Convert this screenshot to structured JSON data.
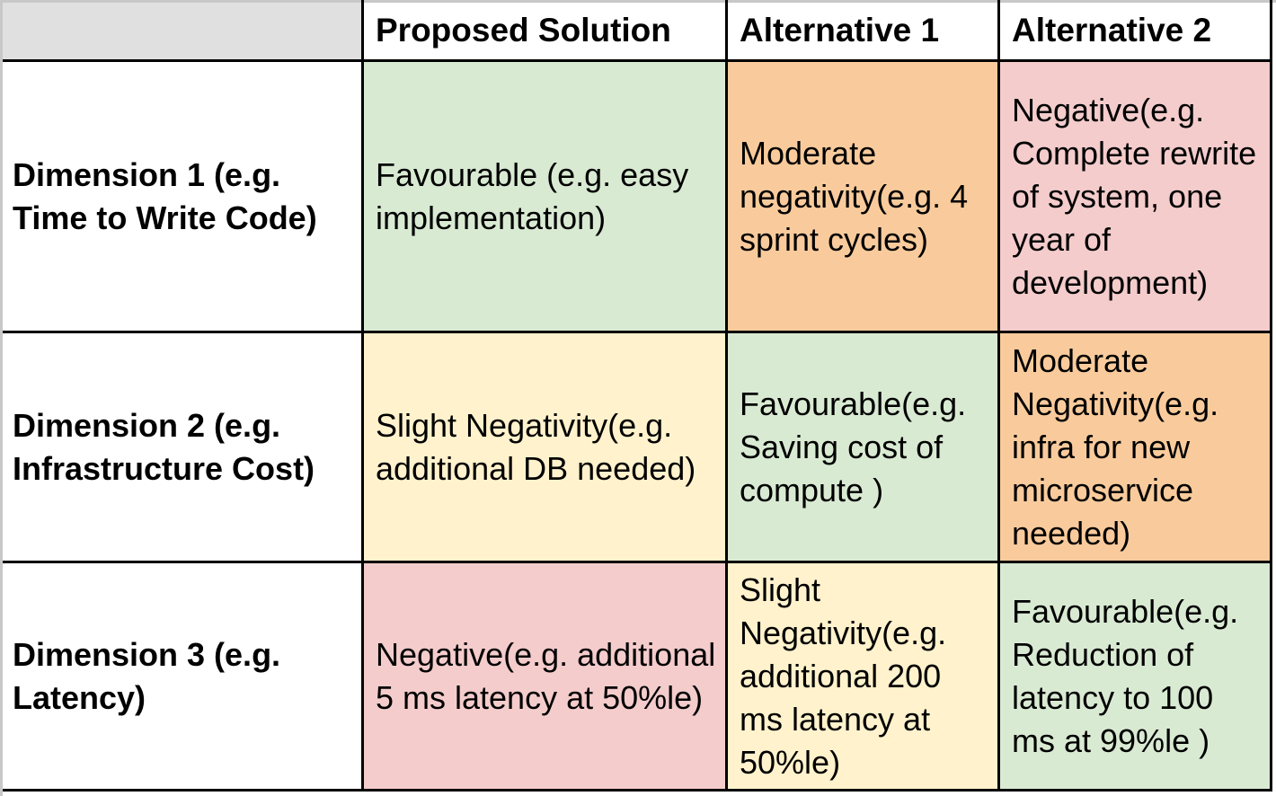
{
  "table": {
    "colors": {
      "header_bg": "#e0e0e0",
      "favourable": "#d9ead3",
      "slight": "#fff2cc",
      "moderate": "#f9cb9c",
      "negative": "#f4cccc",
      "white": "#ffffff"
    },
    "columns": [
      "",
      "Proposed Solution",
      "Alternative 1",
      "Alternative 2"
    ],
    "rows": [
      {
        "label": "Dimension 1 (e.g. Time to Write Code)",
        "cells": [
          {
            "text": "Favourable (e.g. easy implementation)",
            "rating": "favourable"
          },
          {
            "text": "Moderate negativity(e.g. 4 sprint cycles)",
            "rating": "moderate"
          },
          {
            "text": "Negative(e.g. Complete rewrite of system, one year of development)",
            "rating": "negative"
          }
        ]
      },
      {
        "label": "Dimension 2 (e.g. Infrastructure Cost)",
        "cells": [
          {
            "text": "Slight Negativity(e.g. additional DB needed)",
            "rating": "slight"
          },
          {
            "text": "Favourable(e.g. Saving cost of compute )",
            "rating": "favourable"
          },
          {
            "text": "Moderate Negativity(e.g. infra for new microservice needed)",
            "rating": "moderate"
          }
        ]
      },
      {
        "label": "Dimension 3 (e.g. Latency)",
        "cells": [
          {
            "text": "Negative(e.g. additional 5 ms latency at 50%le)",
            "rating": "negative"
          },
          {
            "text": "Slight Negativity(e.g. additional 200 ms latency at 50%le)",
            "rating": "slight"
          },
          {
            "text": "Favourable(e.g. Reduction of latency to 100 ms at 99%le )",
            "rating": "favourable"
          }
        ]
      }
    ]
  }
}
